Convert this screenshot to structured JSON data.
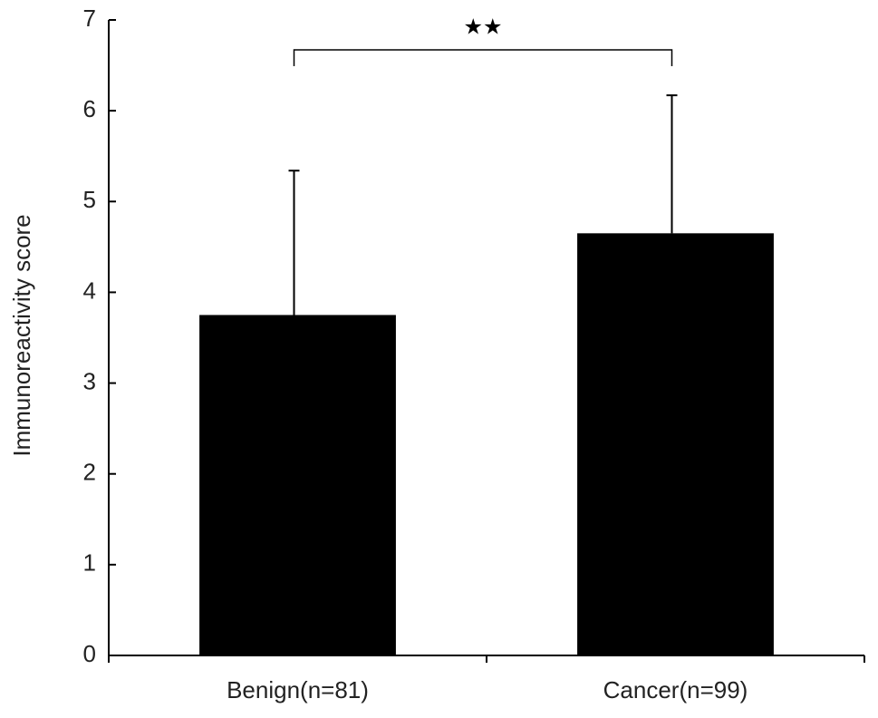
{
  "chart_data": {
    "type": "bar",
    "y_label": "Immunoreactivity score",
    "categories": [
      "Benign(n=81)",
      "Cancer(n=99)"
    ],
    "values": [
      3.75,
      4.65
    ],
    "errors": [
      1.59,
      1.52
    ],
    "color": "#000000",
    "ylim": [
      0,
      7
    ],
    "yticks": [
      0,
      1,
      2,
      3,
      4,
      5,
      6,
      7
    ],
    "grid": false,
    "annotation": "★★"
  }
}
